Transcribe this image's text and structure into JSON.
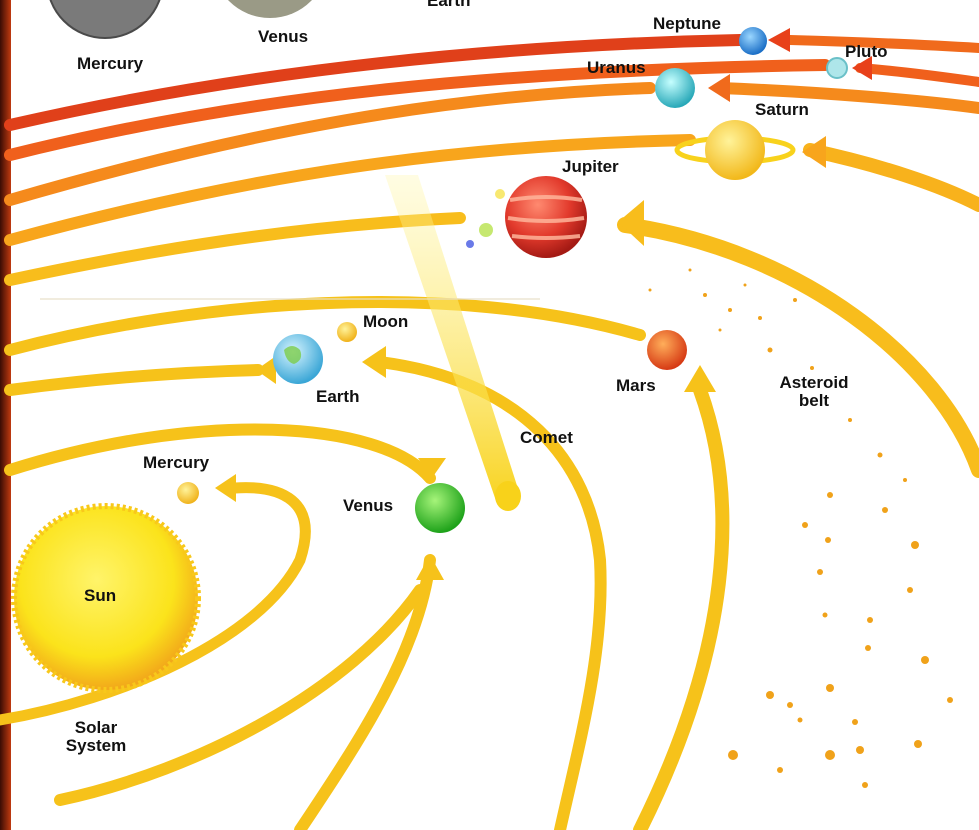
{
  "labels": {
    "top_earth": "Earth",
    "top_mercury": "Mercury",
    "top_venus": "Venus",
    "neptune": "Neptune",
    "pluto": "Pluto",
    "uranus": "Uranus",
    "saturn": "Saturn",
    "jupiter": "Jupiter",
    "moon": "Moon",
    "earth": "Earth",
    "mars": "Mars",
    "asteroid_line1": "Asteroid",
    "asteroid_line2": "belt",
    "comet": "Comet",
    "mercury": "Mercury",
    "venus": "Venus",
    "sun": "Sun",
    "caption_line1": "Solar",
    "caption_line2": "System"
  },
  "colors": {
    "orbit_yellow": "#f6c21a",
    "orbit_orange": "#f39a1c",
    "orbit_red": "#e0401a",
    "sun": "#fbe31b",
    "jupiter": "#e23a2c",
    "mars": "#f0511f",
    "earth": "#5cc0e6",
    "venus": "#38c12a",
    "neptune": "#2a8fe0",
    "uranus": "#40c8c8",
    "saturn": "#fbd21c",
    "background_edge": "#2a0a04"
  }
}
